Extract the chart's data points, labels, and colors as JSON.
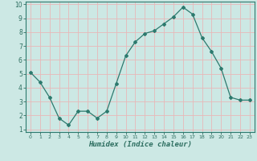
{
  "x": [
    0,
    1,
    2,
    3,
    4,
    5,
    6,
    7,
    8,
    9,
    10,
    11,
    12,
    13,
    14,
    15,
    16,
    17,
    18,
    19,
    20,
    21,
    22,
    23
  ],
  "y": [
    5.1,
    4.4,
    3.3,
    1.8,
    1.3,
    2.3,
    2.3,
    1.8,
    2.3,
    4.3,
    6.3,
    7.3,
    7.9,
    8.1,
    8.6,
    9.1,
    9.8,
    9.3,
    7.6,
    6.6,
    5.4,
    3.3,
    3.1,
    3.1
  ],
  "xlabel": "Humidex (Indice chaleur)",
  "line_color": "#2d7a6e",
  "bg_color": "#cce8e4",
  "grid_color": "#e8b8b8",
  "tick_color": "#2d6e60",
  "spine_color": "#2d7a6e",
  "xlim": [
    -0.5,
    23.5
  ],
  "ylim": [
    0.8,
    10.2
  ],
  "xticks": [
    0,
    1,
    2,
    3,
    4,
    5,
    6,
    7,
    8,
    9,
    10,
    11,
    12,
    13,
    14,
    15,
    16,
    17,
    18,
    19,
    20,
    21,
    22,
    23
  ],
  "yticks": [
    1,
    2,
    3,
    4,
    5,
    6,
    7,
    8,
    9,
    10
  ],
  "marker": "D",
  "markersize": 2.0,
  "linewidth": 0.9
}
